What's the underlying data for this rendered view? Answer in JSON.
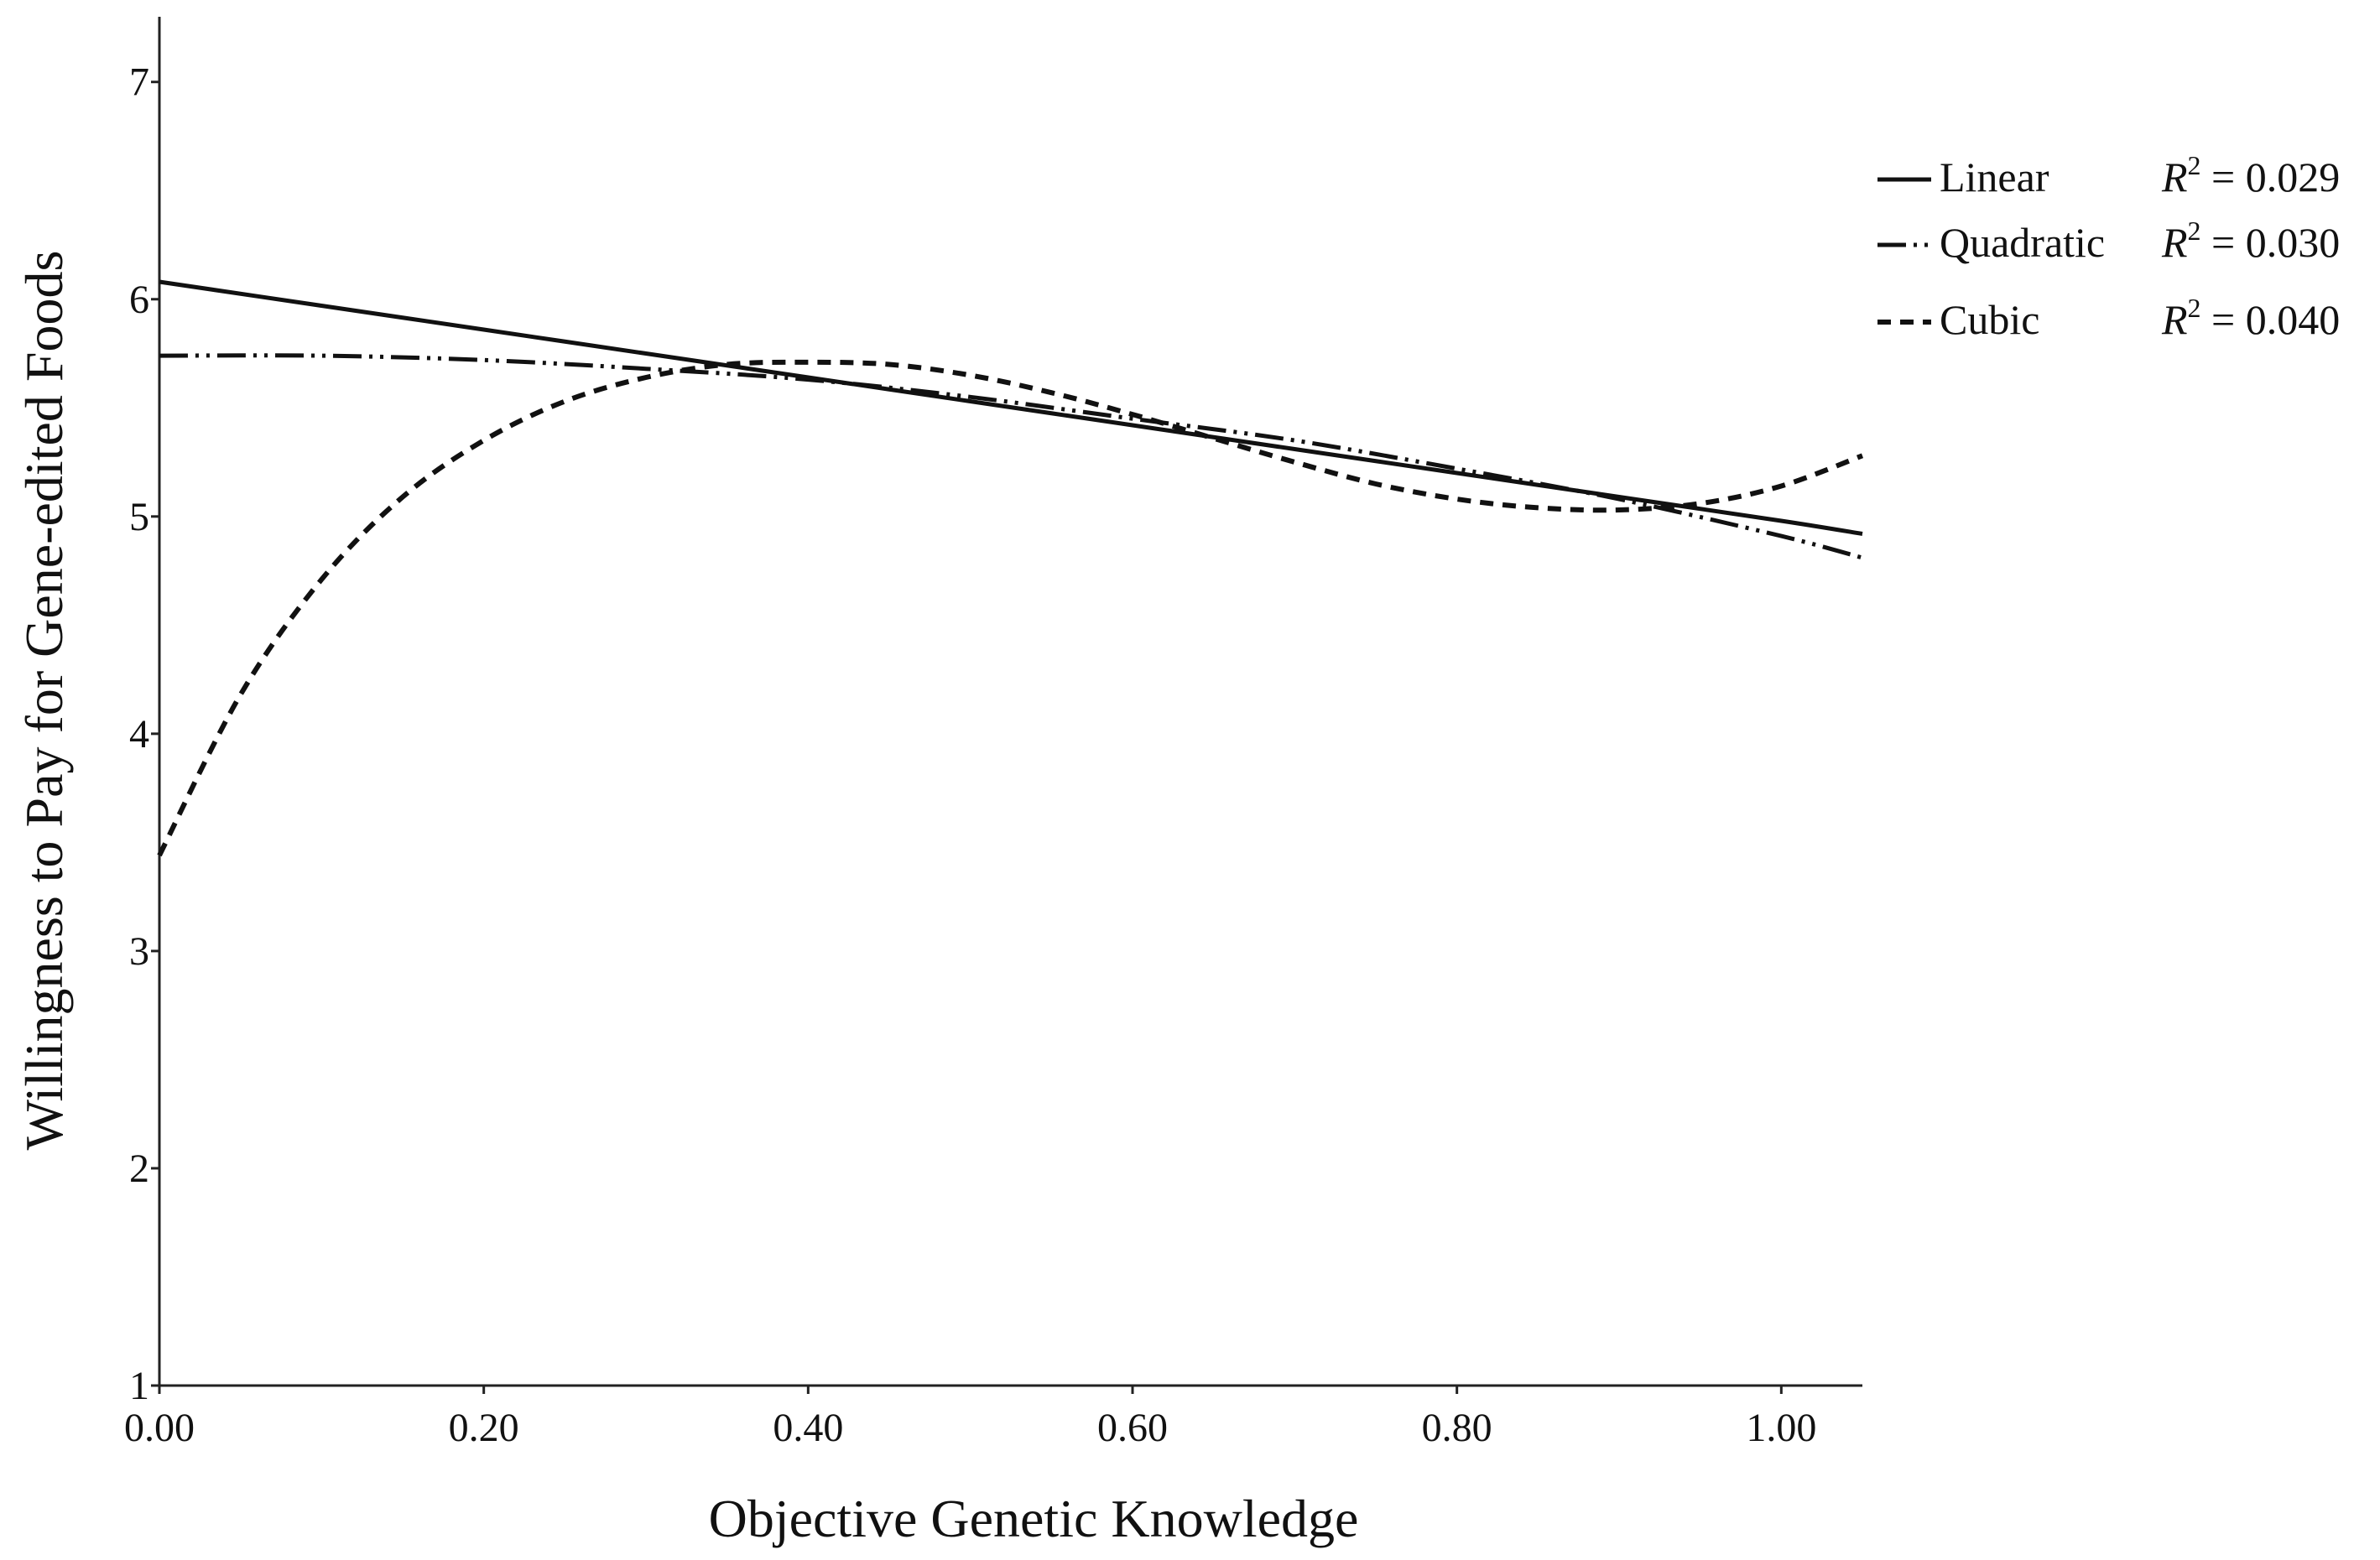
{
  "chart_data": {
    "type": "line",
    "xlabel": "Objective Genetic Knowledge",
    "ylabel": "Willingness to Pay for Gene-edited Foods",
    "xlim": [
      0,
      1.05
    ],
    "ylim": [
      1,
      7.3
    ],
    "x_ticks": [
      "0.00",
      "0.20",
      "0.40",
      "0.60",
      "0.80",
      "1.00"
    ],
    "x_tick_values": [
      0,
      0.2,
      0.4,
      0.6,
      0.8,
      1.0
    ],
    "y_ticks": [
      "1",
      "2",
      "3",
      "4",
      "5",
      "6",
      "7"
    ],
    "y_tick_values": [
      1,
      2,
      3,
      4,
      5,
      6,
      7
    ],
    "grid": false,
    "legend_position": "top-right outside plot",
    "series": [
      {
        "name": "Linear",
        "style": "solid",
        "r2_label": "R",
        "r2_sup": "2",
        "r2_value": "= 0.029",
        "x": [
          0,
          0.1,
          0.2,
          0.3,
          0.4,
          0.5,
          0.6,
          0.7,
          0.8,
          0.9,
          1.0,
          1.05
        ],
        "y": [
          6.08,
          5.97,
          5.86,
          5.75,
          5.64,
          5.53,
          5.42,
          5.31,
          5.2,
          5.09,
          4.98,
          4.92
        ]
      },
      {
        "name": "Quadratic",
        "style": "dash-dot-dot",
        "r2_label": "R",
        "r2_sup": "2",
        "r2_value": "= 0.030",
        "x": [
          0,
          0.1,
          0.2,
          0.3,
          0.4,
          0.5,
          0.6,
          0.7,
          0.8,
          0.9,
          1.0,
          1.05
        ],
        "y": [
          5.74,
          5.74,
          5.72,
          5.68,
          5.63,
          5.55,
          5.45,
          5.35,
          5.22,
          5.08,
          4.91,
          4.81
        ]
      },
      {
        "name": "Cubic",
        "style": "dashed",
        "r2_label": "R",
        "r2_sup": "2",
        "r2_value": "= 0.040",
        "x": [
          0,
          0.05,
          0.1,
          0.15,
          0.2,
          0.25,
          0.3,
          0.35,
          0.4,
          0.45,
          0.5,
          0.55,
          0.6,
          0.65,
          0.7,
          0.75,
          0.8,
          0.85,
          0.9,
          0.95,
          1.0,
          1.05
        ],
        "y": [
          3.44,
          4.18,
          4.71,
          5.09,
          5.35,
          5.53,
          5.64,
          5.7,
          5.71,
          5.7,
          5.65,
          5.57,
          5.47,
          5.36,
          5.25,
          5.15,
          5.08,
          5.04,
          5.03,
          5.06,
          5.14,
          5.28
        ]
      }
    ]
  }
}
